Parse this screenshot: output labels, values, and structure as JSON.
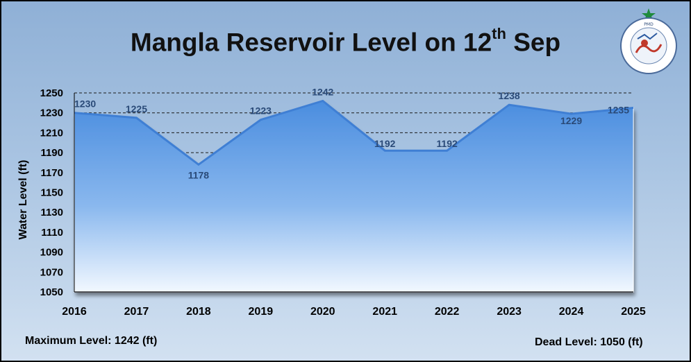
{
  "title": {
    "main": "Mangla Reservoir Level on 12",
    "sup": "th",
    "tail": " Sep"
  },
  "footer": {
    "max_level": "Maximum Level: 1242 (ft)",
    "dead_level": "Dead Level: 1050 (ft)"
  },
  "logo": {
    "icon": "pmd-seal-icon",
    "text": "PAKISTAN METEOROLOGICAL DEPARTMENT"
  },
  "colors": {
    "fill_top": "#4a8ddf",
    "fill_bottom": "#f2f8ff",
    "line": "#3f7fd4",
    "label": "#2a4a78"
  },
  "chart_data": {
    "type": "area",
    "x": [
      "2016",
      "2017",
      "2018",
      "2019",
      "2020",
      "2021",
      "2022",
      "2023",
      "2024",
      "2025"
    ],
    "series": [
      {
        "values": [
          1230,
          1225,
          1178,
          1223,
          1242,
          1192,
          1192,
          1238,
          1229,
          1235
        ]
      }
    ],
    "data_labels": [
      "1230",
      "1225",
      "1178",
      "1223",
      "1242",
      "1192",
      "1192",
      "1238",
      "1229",
      "1235"
    ],
    "ylabel": "Water Level (ft)",
    "xlabel": "",
    "ylim": [
      1050,
      1250
    ],
    "yticks": [
      1050,
      1070,
      1090,
      1110,
      1130,
      1150,
      1170,
      1190,
      1210,
      1230,
      1250
    ],
    "gridlines": "dashed, upper values"
  }
}
